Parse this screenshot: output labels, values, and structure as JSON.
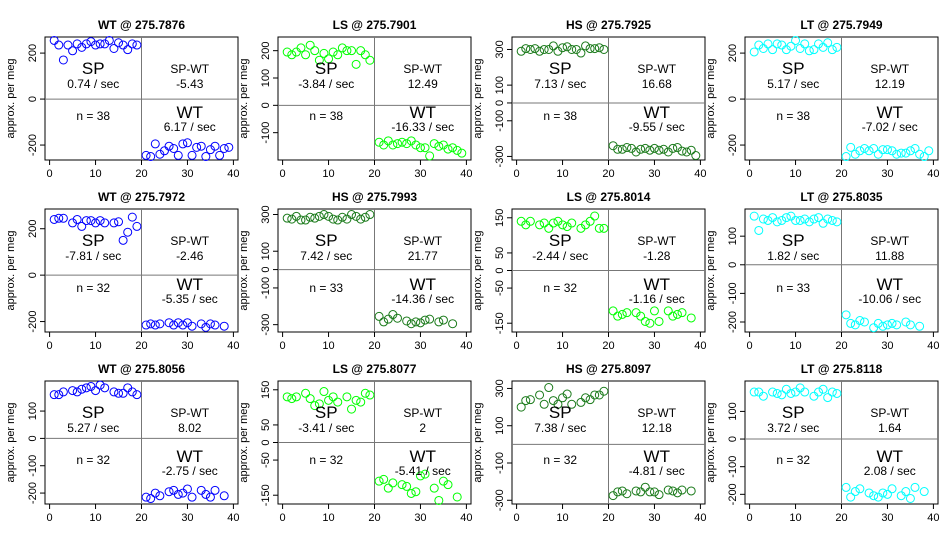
{
  "chart_data": [
    {
      "type": "scatter",
      "title": "WT @ 275.7876",
      "ylabel": "approx. per meg",
      "ylim": [
        -265,
        270
      ],
      "yticks": [
        -200,
        0,
        200
      ],
      "xlim": [
        -1,
        41
      ],
      "xticks": [
        0,
        10,
        20,
        30,
        40
      ],
      "color": "#0000ff",
      "sp": {
        "label": "SP",
        "rate": "0.74 / sec"
      },
      "diff": {
        "label": "SP-WT",
        "value": "-5.43"
      },
      "wt": {
        "label": "WT",
        "rate": "6.17 / sec"
      },
      "n": "n = 38",
      "x": [
        1,
        2,
        3,
        4,
        5,
        6,
        7,
        8,
        9,
        10,
        11,
        12,
        13,
        14,
        15,
        16,
        17,
        18,
        19,
        21,
        22,
        23,
        24,
        25,
        26,
        27,
        28,
        29,
        30,
        31,
        32,
        33,
        34,
        35,
        36,
        37,
        38,
        39
      ],
      "y": [
        255,
        235,
        170,
        235,
        210,
        240,
        225,
        240,
        250,
        235,
        240,
        240,
        255,
        220,
        245,
        235,
        215,
        240,
        235,
        -245,
        -250,
        -195,
        -240,
        -225,
        -205,
        -215,
        -245,
        -195,
        -190,
        -245,
        -210,
        -205,
        -250,
        -220,
        -205,
        -245,
        -215,
        -210
      ]
    },
    {
      "type": "scatter",
      "title": "LS @ 275.7901",
      "ylabel": "approx. per meg",
      "ylim": [
        -200,
        250
      ],
      "yticks": [
        -100,
        0,
        100,
        200
      ],
      "xlim": [
        -1,
        41
      ],
      "xticks": [
        0,
        10,
        20,
        30,
        40
      ],
      "color": "#00ff00",
      "sp": {
        "label": "SP",
        "rate": "-3.84 / sec"
      },
      "diff": {
        "label": "SP-WT",
        "value": "12.49"
      },
      "wt": {
        "label": "WT",
        "rate": "-16.33 / sec"
      },
      "n": "n = 38",
      "x": [
        1,
        2,
        3,
        4,
        5,
        6,
        7,
        8,
        9,
        10,
        11,
        12,
        13,
        14,
        15,
        16,
        17,
        18,
        19,
        21,
        22,
        23,
        24,
        25,
        26,
        27,
        28,
        29,
        30,
        31,
        32,
        33,
        34,
        35,
        36,
        37,
        38,
        39
      ],
      "y": [
        195,
        185,
        195,
        210,
        185,
        220,
        200,
        165,
        190,
        170,
        195,
        185,
        210,
        200,
        200,
        150,
        200,
        185,
        165,
        -135,
        -145,
        -130,
        -145,
        -140,
        -135,
        -140,
        -130,
        -145,
        -155,
        -155,
        -185,
        -140,
        -150,
        -145,
        -160,
        -155,
        -165,
        -175
      ]
    },
    {
      "type": "scatter",
      "title": "HS @ 275.7925",
      "ylabel": "approx. per meg",
      "ylim": [
        -320,
        370
      ],
      "yticks": [
        -300,
        -100,
        0,
        100,
        300
      ],
      "xlim": [
        -1,
        41
      ],
      "xticks": [
        0,
        10,
        20,
        30,
        40
      ],
      "color": "#1a7a1a",
      "sp": {
        "label": "SP",
        "rate": "7.13 / sec"
      },
      "diff": {
        "label": "SP-WT",
        "value": "16.68"
      },
      "wt": {
        "label": "WT",
        "rate": "-9.55 / sec"
      },
      "n": "n = 38",
      "x": [
        1,
        2,
        3,
        4,
        5,
        6,
        7,
        8,
        9,
        10,
        11,
        12,
        13,
        14,
        15,
        16,
        17,
        18,
        19,
        21,
        22,
        23,
        24,
        25,
        26,
        27,
        28,
        29,
        30,
        31,
        32,
        33,
        34,
        35,
        36,
        37,
        38,
        39
      ],
      "y": [
        290,
        305,
        300,
        305,
        290,
        300,
        300,
        320,
        290,
        310,
        315,
        300,
        300,
        280,
        320,
        305,
        305,
        310,
        300,
        -240,
        -260,
        -260,
        -250,
        -255,
        -275,
        -260,
        -255,
        -265,
        -255,
        -265,
        -260,
        -275,
        -255,
        -250,
        -270,
        -275,
        -265,
        -295
      ]
    },
    {
      "type": "scatter",
      "title": "LT @ 275.7949",
      "ylabel": "approx. per meg",
      "ylim": [
        -265,
        270
      ],
      "yticks": [
        -200,
        0,
        200
      ],
      "xlim": [
        -1,
        41
      ],
      "xticks": [
        0,
        10,
        20,
        30,
        40
      ],
      "color": "#00ffff",
      "sp": {
        "label": "SP",
        "rate": "5.17 / sec"
      },
      "diff": {
        "label": "SP-WT",
        "value": "12.19"
      },
      "wt": {
        "label": "WT",
        "rate": "-7.02 / sec"
      },
      "n": "n = 38",
      "x": [
        1,
        2,
        3,
        4,
        5,
        6,
        7,
        8,
        9,
        10,
        11,
        12,
        13,
        14,
        15,
        16,
        17,
        18,
        19,
        21,
        22,
        23,
        24,
        25,
        26,
        27,
        28,
        29,
        30,
        31,
        32,
        33,
        34,
        35,
        36,
        37,
        38,
        39
      ],
      "y": [
        205,
        235,
        220,
        240,
        215,
        240,
        235,
        215,
        230,
        255,
        220,
        240,
        210,
        215,
        240,
        225,
        245,
        215,
        225,
        -250,
        -210,
        -240,
        -225,
        -215,
        -225,
        -215,
        -240,
        -220,
        -220,
        -225,
        -240,
        -235,
        -235,
        -225,
        -215,
        -240,
        -250,
        -225
      ]
    },
    {
      "type": "scatter",
      "title": "WT @ 275.7972",
      "ylabel": "approx. per meg",
      "ylim": [
        -245,
        285
      ],
      "yticks": [
        -200,
        0,
        200
      ],
      "xlim": [
        -1,
        41
      ],
      "xticks": [
        0,
        10,
        20,
        30,
        40
      ],
      "color": "#0000ff",
      "sp": {
        "label": "SP",
        "rate": "-7.81 / sec"
      },
      "diff": {
        "label": "SP-WT",
        "value": "-2.46"
      },
      "wt": {
        "label": "WT",
        "rate": "-5.35 / sec"
      },
      "n": "n = 32",
      "x": [
        1,
        2,
        3,
        5,
        6,
        7,
        8,
        9,
        10,
        11,
        12,
        14,
        15,
        16,
        17,
        18,
        19,
        21,
        22,
        23,
        24,
        26,
        27,
        28,
        29,
        30,
        31,
        33,
        34,
        35,
        36,
        38
      ],
      "y": [
        240,
        245,
        245,
        225,
        240,
        210,
        235,
        235,
        225,
        235,
        225,
        225,
        230,
        150,
        185,
        250,
        210,
        -215,
        -210,
        -215,
        -210,
        -205,
        -215,
        -205,
        -215,
        -205,
        -220,
        -210,
        -225,
        -210,
        -215,
        -220
      ]
    },
    {
      "type": "scatter",
      "title": "HS @ 275.7993",
      "ylabel": "approx. per meg",
      "ylim": [
        -340,
        330
      ],
      "yticks": [
        -300,
        -100,
        0,
        100,
        300
      ],
      "xlim": [
        -1,
        41
      ],
      "xticks": [
        0,
        10,
        20,
        30,
        40
      ],
      "color": "#1a7a1a",
      "sp": {
        "label": "SP",
        "rate": "7.42 / sec"
      },
      "diff": {
        "label": "SP-WT",
        "value": "21.77"
      },
      "wt": {
        "label": "WT",
        "rate": "-14.36 / sec"
      },
      "n": "n = 33",
      "x": [
        1,
        2,
        3,
        4,
        5,
        6,
        7,
        8,
        9,
        10,
        11,
        12,
        13,
        14,
        15,
        16,
        17,
        18,
        19,
        21,
        22,
        23,
        24,
        25,
        27,
        28,
        29,
        30,
        31,
        32,
        34,
        35,
        37
      ],
      "y": [
        280,
        275,
        290,
        270,
        270,
        285,
        280,
        290,
        300,
        290,
        275,
        270,
        285,
        275,
        300,
        290,
        275,
        285,
        300,
        -255,
        -285,
        -270,
        -245,
        -265,
        -280,
        -295,
        -285,
        -290,
        -275,
        -270,
        -285,
        -275,
        -295
      ]
    },
    {
      "type": "scatter",
      "title": "LS @ 275.8014",
      "ylabel": "approx. per meg",
      "ylim": [
        -175,
        175
      ],
      "yticks": [
        -150,
        -50,
        0,
        50,
        150
      ],
      "xlim": [
        -1,
        41
      ],
      "xticks": [
        0,
        10,
        20,
        30,
        40
      ],
      "color": "#00ff00",
      "sp": {
        "label": "SP",
        "rate": "-2.44 / sec"
      },
      "diff": {
        "label": "SP-WT",
        "value": "-1.28"
      },
      "wt": {
        "label": "WT",
        "rate": "-1.16 / sec"
      },
      "n": "n = 32",
      "x": [
        1,
        2,
        3,
        5,
        6,
        7,
        8,
        9,
        10,
        11,
        12,
        14,
        15,
        16,
        17,
        18,
        19,
        21,
        22,
        23,
        24,
        26,
        27,
        28,
        29,
        30,
        31,
        33,
        34,
        35,
        36,
        38
      ],
      "y": [
        140,
        130,
        140,
        130,
        135,
        120,
        135,
        140,
        130,
        125,
        135,
        120,
        130,
        140,
        155,
        120,
        120,
        -115,
        -130,
        -125,
        -120,
        -120,
        -130,
        -145,
        -150,
        -115,
        -145,
        -115,
        -130,
        -125,
        -120,
        -135
      ]
    },
    {
      "type": "scatter",
      "title": "LT @ 275.8035",
      "ylabel": "approx. per meg",
      "ylim": [
        -235,
        195
      ],
      "yticks": [
        -200,
        -100,
        0,
        100
      ],
      "xlim": [
        -1,
        41
      ],
      "xticks": [
        0,
        10,
        20,
        30,
        40
      ],
      "color": "#00ffff",
      "sp": {
        "label": "SP",
        "rate": "1.82 / sec"
      },
      "diff": {
        "label": "SP-WT",
        "value": "11.88"
      },
      "wt": {
        "label": "WT",
        "rate": "-10.06 / sec"
      },
      "n": "n = 33",
      "x": [
        1,
        2,
        3,
        4,
        5,
        6,
        7,
        8,
        9,
        10,
        11,
        12,
        13,
        14,
        15,
        16,
        17,
        18,
        19,
        21,
        22,
        23,
        24,
        25,
        27,
        28,
        29,
        30,
        31,
        32,
        34,
        35,
        37
      ],
      "y": [
        170,
        120,
        160,
        155,
        165,
        150,
        155,
        165,
        170,
        155,
        155,
        160,
        150,
        160,
        165,
        145,
        160,
        155,
        150,
        -175,
        -205,
        -210,
        -195,
        -200,
        -220,
        -205,
        -215,
        -210,
        -205,
        -210,
        -200,
        -210,
        -215
      ]
    },
    {
      "type": "scatter",
      "title": "WT @ 275.8056",
      "ylabel": "approx. per meg",
      "ylim": [
        -240,
        210
      ],
      "yticks": [
        -200,
        -100,
        0,
        100
      ],
      "xlim": [
        -1,
        41
      ],
      "xticks": [
        0,
        10,
        20,
        30,
        40
      ],
      "color": "#0000ff",
      "sp": {
        "label": "SP",
        "rate": "5.27 / sec"
      },
      "diff": {
        "label": "SP-WT",
        "value": "8.02"
      },
      "wt": {
        "label": "WT",
        "rate": "-2.75 / sec"
      },
      "n": "n = 32",
      "x": [
        1,
        2,
        3,
        5,
        6,
        7,
        8,
        9,
        10,
        11,
        12,
        14,
        15,
        16,
        17,
        18,
        19,
        21,
        22,
        23,
        24,
        26,
        27,
        28,
        29,
        30,
        31,
        33,
        34,
        35,
        36,
        38
      ],
      "y": [
        160,
        160,
        170,
        175,
        170,
        180,
        185,
        190,
        175,
        195,
        185,
        170,
        165,
        165,
        185,
        170,
        160,
        -215,
        -220,
        -200,
        -210,
        -195,
        -190,
        -205,
        -200,
        -185,
        -215,
        -190,
        -205,
        -215,
        -190,
        -210
      ]
    },
    {
      "type": "scatter",
      "title": "LS @ 275.8077",
      "ylabel": "approx. per meg",
      "ylim": [
        -175,
        175
      ],
      "yticks": [
        -150,
        -50,
        0,
        50,
        150
      ],
      "xlim": [
        -1,
        41
      ],
      "xticks": [
        0,
        10,
        20,
        30,
        40
      ],
      "color": "#00ff00",
      "sp": {
        "label": "SP",
        "rate": "-3.41 / sec"
      },
      "diff": {
        "label": "SP-WT",
        "value": "2"
      },
      "wt": {
        "label": "WT",
        "rate": "-5.41 / sec"
      },
      "n": "n = 32",
      "x": [
        1,
        2,
        3,
        5,
        6,
        7,
        8,
        9,
        10,
        11,
        12,
        14,
        15,
        16,
        17,
        18,
        19,
        21,
        22,
        23,
        24,
        26,
        27,
        28,
        29,
        30,
        31,
        33,
        34,
        35,
        36,
        38
      ],
      "y": [
        130,
        125,
        130,
        140,
        125,
        105,
        110,
        145,
        120,
        130,
        115,
        130,
        95,
        120,
        115,
        140,
        135,
        -110,
        -105,
        -130,
        -115,
        -120,
        -125,
        -145,
        -140,
        -95,
        -90,
        -130,
        -165,
        -110,
        -120,
        -155
      ]
    },
    {
      "type": "scatter",
      "title": "HS @ 275.8097",
      "ylabel": "approx. per meg",
      "ylim": [
        -320,
        340
      ],
      "yticks": [
        -300,
        -100,
        100,
        300
      ],
      "xlim": [
        -1,
        41
      ],
      "xticks": [
        0,
        10,
        20,
        30,
        40
      ],
      "color": "#1a7a1a",
      "sp": {
        "label": "SP",
        "rate": "7.38 / sec"
      },
      "diff": {
        "label": "SP-WT",
        "value": "12.18"
      },
      "wt": {
        "label": "WT",
        "rate": "-4.81 / sec"
      },
      "n": "n = 32",
      "x": [
        1,
        2,
        3,
        5,
        6,
        7,
        8,
        9,
        10,
        11,
        12,
        14,
        15,
        16,
        17,
        18,
        19,
        21,
        22,
        23,
        24,
        26,
        27,
        28,
        29,
        30,
        31,
        33,
        34,
        35,
        36,
        38
      ],
      "y": [
        200,
        235,
        240,
        265,
        215,
        305,
        235,
        215,
        250,
        270,
        215,
        225,
        250,
        240,
        265,
        265,
        285,
        -275,
        -255,
        -250,
        -265,
        -250,
        -255,
        -230,
        -255,
        -255,
        -270,
        -245,
        -250,
        -260,
        -245,
        -250
      ]
    },
    {
      "type": "scatter",
      "title": "LT @ 275.8118",
      "ylabel": "approx. per meg",
      "ylim": [
        -235,
        210
      ],
      "yticks": [
        -200,
        -100,
        0,
        100
      ],
      "xlim": [
        -1,
        41
      ],
      "xticks": [
        0,
        10,
        20,
        30,
        40
      ],
      "color": "#00ffff",
      "sp": {
        "label": "SP",
        "rate": "3.72 / sec"
      },
      "diff": {
        "label": "SP-WT",
        "value": "1.64"
      },
      "wt": {
        "label": "WT",
        "rate": "2.08 / sec"
      },
      "n": "n = 32",
      "x": [
        1,
        2,
        3,
        5,
        6,
        7,
        8,
        9,
        10,
        11,
        12,
        14,
        15,
        16,
        17,
        18,
        19,
        21,
        22,
        23,
        24,
        26,
        27,
        28,
        29,
        30,
        31,
        33,
        34,
        35,
        36,
        38
      ],
      "y": [
        170,
        170,
        155,
        170,
        165,
        160,
        180,
        165,
        170,
        185,
        170,
        155,
        170,
        180,
        150,
        170,
        165,
        -175,
        -210,
        -190,
        -180,
        -195,
        -205,
        -210,
        -195,
        -200,
        -180,
        -205,
        -190,
        -215,
        -175,
        -190
      ]
    }
  ]
}
